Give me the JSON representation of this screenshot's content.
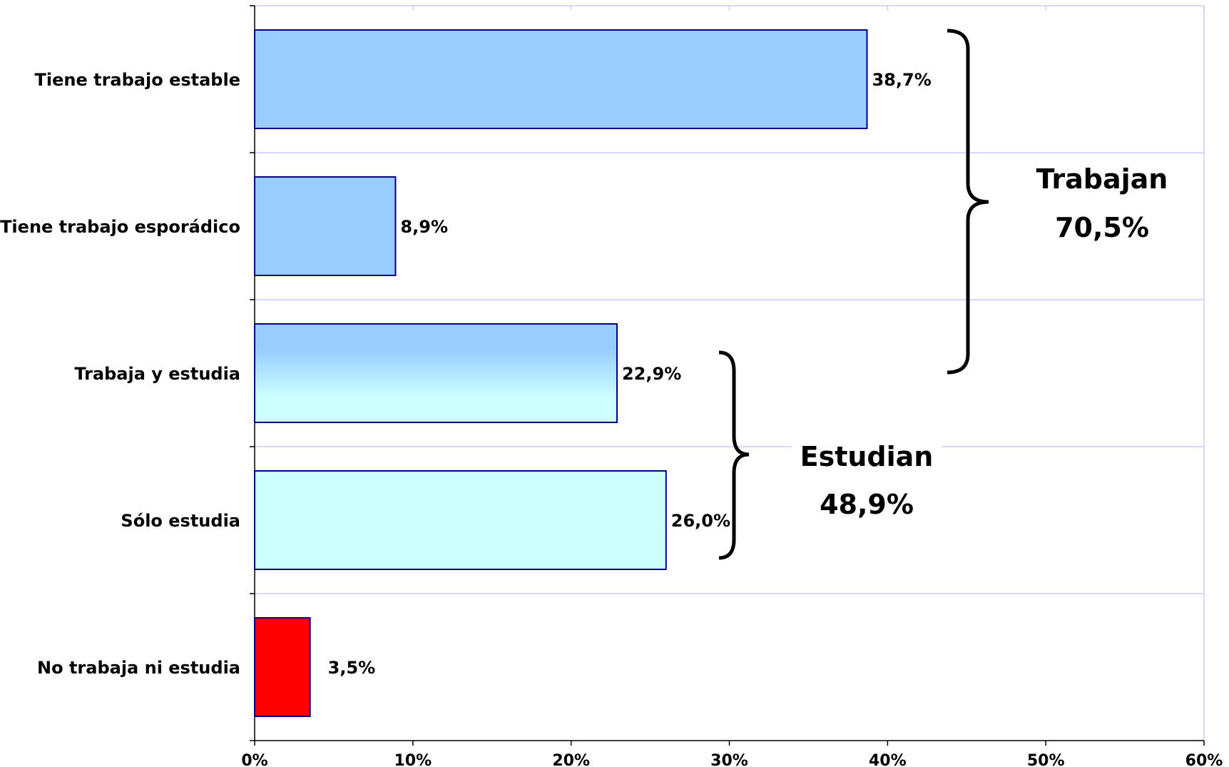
{
  "chart_data": {
    "type": "bar",
    "orientation": "horizontal",
    "categories": [
      "Tiene trabajo estable",
      "Tiene trabajo esporádico",
      "Trabaja y estudia",
      "Sólo estudia",
      "No trabaja ni estudia"
    ],
    "values": [
      38.7,
      8.9,
      22.9,
      26.0,
      3.5
    ],
    "value_labels": [
      "38,7%",
      "8,9%",
      "22,9%",
      "26,0%",
      "3,5%"
    ],
    "bar_fills": [
      "#99ccff",
      "#99ccff",
      "gradient",
      "#ccffff",
      "#ff0000"
    ],
    "bar_stroke": "#000080",
    "x_ticks": [
      0,
      10,
      20,
      30,
      40,
      50,
      60
    ],
    "x_tick_labels": [
      "0%",
      "10%",
      "20%",
      "30%",
      "40%",
      "50%",
      "60%"
    ],
    "xlim": [
      0,
      60
    ],
    "grid": true,
    "grid_color": "#ccccff",
    "groups": [
      {
        "name": "Trabajan",
        "value": "70,5%",
        "categories": [
          "Tiene trabajo estable",
          "Tiene trabajo esporádico",
          "Trabaja y estudia"
        ]
      },
      {
        "name": "Estudian",
        "value": "48,9%",
        "categories": [
          "Trabaja y estudia",
          "Sólo estudia"
        ]
      }
    ]
  }
}
